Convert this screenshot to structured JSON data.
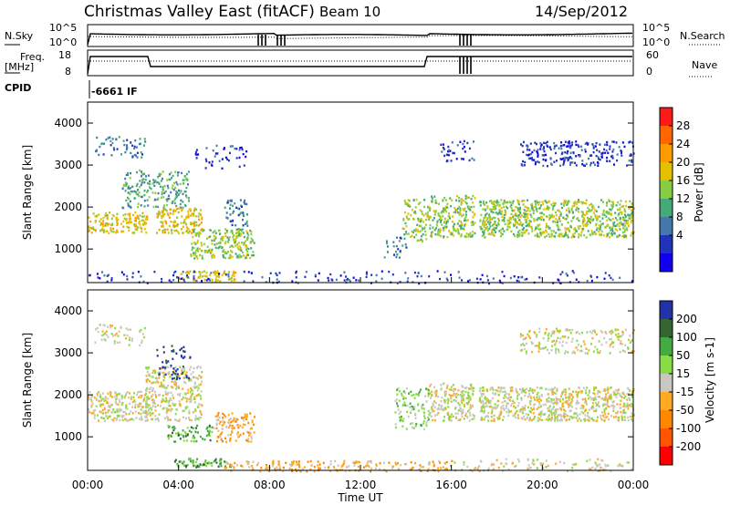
{
  "header": {
    "title": "Christmas Valley East (fitACF)",
    "beam": "Beam 10",
    "date": "14/Sep/2012"
  },
  "panel_sky": {
    "left_label": "N.Sky",
    "left_ticks": [
      "10^5",
      "10^0"
    ],
    "right_label": "N.Search",
    "right_ticks": [
      "10^5",
      "10^0"
    ]
  },
  "panel_freq": {
    "left_label_line1": "Freq.",
    "left_label_line2": "[MHz]",
    "left_ticks": [
      "18",
      "8"
    ],
    "right_label": "Nave",
    "right_ticks": [
      "60",
      "0"
    ]
  },
  "cpid": {
    "label": "CPID",
    "value": "-6661 IF"
  },
  "x_axis": {
    "title": "Time UT",
    "tick_labels": [
      "00:00",
      "04:00",
      "08:00",
      "12:00",
      "16:00",
      "20:00",
      "00:00"
    ]
  },
  "power_colorbar": {
    "title": "Power [dB]",
    "labels": [
      "28",
      "24",
      "20",
      "16",
      "12",
      "8",
      "4"
    ],
    "colors": [
      "#ff1a1a",
      "#ff6600",
      "#ff9900",
      "#e6c000",
      "#88cc44",
      "#44aa77",
      "#4477aa",
      "#2233bb",
      "#1100ee"
    ]
  },
  "velocity_colorbar": {
    "title": "Velocity [m s-1]",
    "labels": [
      "200",
      "100",
      "50",
      "15",
      "-15",
      "-50",
      "-100",
      "-200"
    ],
    "colors": [
      "#2233aa",
      "#336633",
      "#44aa44",
      "#88dd44",
      "#c8c8c0",
      "#ffaa22",
      "#ff8800",
      "#ff5500",
      "#ff0000"
    ]
  },
  "chart_data": [
    {
      "type": "heatmap",
      "name": "power",
      "ylabel": "Slant Range [km]",
      "yticks": [
        1000,
        2000,
        3000,
        4000
      ],
      "ylim": [
        200,
        4500
      ],
      "xlim": [
        0,
        24
      ],
      "xlabel": "Time UT",
      "scatter_regions": [
        {
          "t0": 0.0,
          "t1": 2.6,
          "r0": 1400,
          "r1": 1900,
          "level": 5,
          "density": 0.85
        },
        {
          "t0": 0.3,
          "t1": 2.5,
          "r0": 3200,
          "r1": 3700,
          "level": 2,
          "density": 0.35
        },
        {
          "t0": 1.5,
          "t1": 4.5,
          "r0": 2000,
          "r1": 2900,
          "level": 3,
          "density": 0.5
        },
        {
          "t0": 3.0,
          "t1": 5.0,
          "r0": 1400,
          "r1": 2000,
          "level": 5,
          "density": 0.85
        },
        {
          "t0": 4.5,
          "t1": 7.3,
          "r0": 800,
          "r1": 1500,
          "level": 4,
          "density": 0.8
        },
        {
          "t0": 6.0,
          "t1": 7.0,
          "r0": 1500,
          "r1": 2200,
          "level": 2,
          "density": 0.5
        },
        {
          "t0": 4.5,
          "t1": 7.0,
          "r0": 2900,
          "r1": 3500,
          "level": 1,
          "density": 0.2
        },
        {
          "t0": 4.0,
          "t1": 6.5,
          "r0": 250,
          "r1": 500,
          "level": 5,
          "density": 0.8
        },
        {
          "t0": 0.0,
          "t1": 24.0,
          "r0": 200,
          "r1": 500,
          "level": 1,
          "density": 0.18
        },
        {
          "t0": 13.8,
          "t1": 15.0,
          "r0": 1200,
          "r1": 2200,
          "level": 4,
          "density": 0.55
        },
        {
          "t0": 15.0,
          "t1": 17.0,
          "r0": 1300,
          "r1": 2300,
          "level": 4,
          "density": 0.75
        },
        {
          "t0": 17.2,
          "t1": 24.0,
          "r0": 1300,
          "r1": 2200,
          "level": 4,
          "density": 0.9
        },
        {
          "t0": 15.5,
          "t1": 17.0,
          "r0": 3100,
          "r1": 3600,
          "level": 1,
          "density": 0.35
        },
        {
          "t0": 19.0,
          "t1": 24.0,
          "r0": 3000,
          "r1": 3600,
          "level": 1,
          "density": 0.5
        },
        {
          "t0": 13.0,
          "t1": 14.0,
          "r0": 800,
          "r1": 1300,
          "level": 2,
          "density": 0.35
        }
      ]
    },
    {
      "type": "heatmap",
      "name": "velocity",
      "ylabel": "Slant Range [km]",
      "yticks": [
        1000,
        2000,
        3000,
        4000
      ],
      "ylim": [
        200,
        4500
      ],
      "xlim": [
        0,
        24
      ],
      "xlabel": "Time UT",
      "scatter_regions": [
        {
          "t0": 0.0,
          "t1": 2.6,
          "r0": 1400,
          "r1": 2100,
          "level": 4,
          "density": 0.8
        },
        {
          "t0": 2.5,
          "t1": 5.0,
          "r0": 1400,
          "r1": 2700,
          "level": 4,
          "density": 0.7
        },
        {
          "t0": 3.0,
          "t1": 4.5,
          "r0": 2400,
          "r1": 3200,
          "level": 0,
          "density": 0.3
        },
        {
          "t0": 3.5,
          "t1": 5.5,
          "r0": 900,
          "r1": 1300,
          "level": 2,
          "density": 0.6
        },
        {
          "t0": 5.5,
          "t1": 7.3,
          "r0": 900,
          "r1": 1600,
          "level": 5,
          "density": 0.65
        },
        {
          "t0": 0.3,
          "t1": 2.5,
          "r0": 3200,
          "r1": 3700,
          "level": 4,
          "density": 0.35
        },
        {
          "t0": 3.8,
          "t1": 6.5,
          "r0": 300,
          "r1": 500,
          "level": 2,
          "density": 0.8
        },
        {
          "t0": 6.0,
          "t1": 16.0,
          "r0": 200,
          "r1": 450,
          "level": 5,
          "density": 0.55
        },
        {
          "t0": 13.5,
          "t1": 15.0,
          "r0": 1200,
          "r1": 2200,
          "level": 3,
          "density": 0.45
        },
        {
          "t0": 15.0,
          "t1": 17.0,
          "r0": 1400,
          "r1": 2300,
          "level": 4,
          "density": 0.75
        },
        {
          "t0": 17.2,
          "t1": 24.0,
          "r0": 1400,
          "r1": 2200,
          "level": 4,
          "density": 0.9
        },
        {
          "t0": 19.0,
          "t1": 24.0,
          "r0": 3000,
          "r1": 3600,
          "level": 4,
          "density": 0.45
        },
        {
          "t0": 16.0,
          "t1": 24.0,
          "r0": 200,
          "r1": 500,
          "level": 4,
          "density": 0.3
        }
      ]
    }
  ]
}
